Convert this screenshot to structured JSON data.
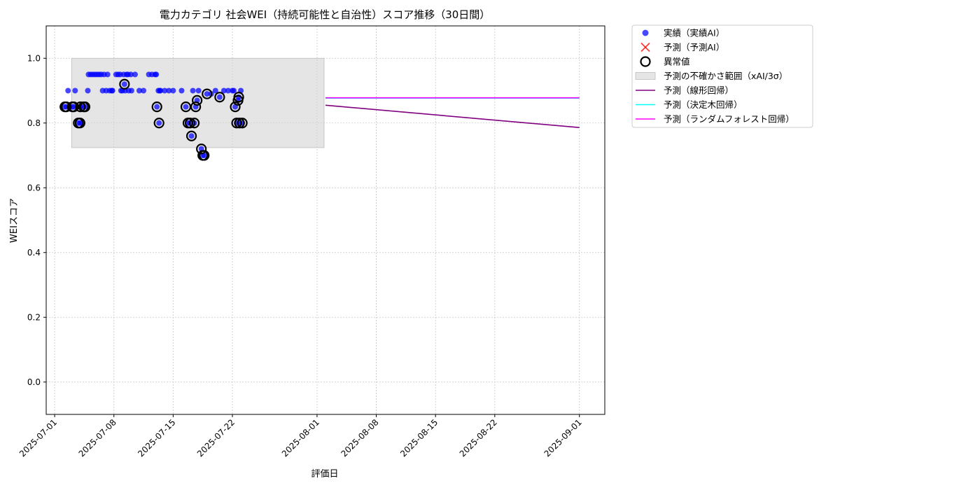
{
  "chart_data": {
    "type": "scatter",
    "title": "電力カテゴリ 社会WEI（持続可能性と自治性）スコア推移（30日間）",
    "xlabel": "評価日",
    "ylabel": "WEIスコア",
    "xlim": [
      "2025-06-30T00:00",
      "2025-09-04T00:00"
    ],
    "ylim": [
      -0.1,
      1.1
    ],
    "x_ticks": [
      "2025-07-01",
      "2025-07-08",
      "2025-07-15",
      "2025-07-22",
      "2025-08-01",
      "2025-08-08",
      "2025-08-15",
      "2025-08-22",
      "2025-09-01"
    ],
    "y_ticks": [
      0.0,
      0.2,
      0.4,
      0.6,
      0.8,
      1.0
    ],
    "grid": true,
    "legend_position": "outside-top-right",
    "colors": {
      "actual": "#0000ff",
      "predicted": "#ff0000",
      "anomaly": "#000000",
      "uncertainty": "#d3d3d3",
      "linear": "#800080",
      "tree": "#00ffff",
      "forest": "#ff00ff"
    },
    "legend": [
      {
        "key": "actual",
        "label": "実績（実績AI）",
        "marker": "dot"
      },
      {
        "key": "predicted",
        "label": "予測（予測AI）",
        "marker": "x"
      },
      {
        "key": "anomaly",
        "label": "異常値",
        "marker": "ring"
      },
      {
        "key": "uncertainty",
        "label": "予測の不確かさ範囲（xAI/3σ）",
        "marker": "box"
      },
      {
        "key": "linear",
        "label": "予測（線形回帰）",
        "marker": "line"
      },
      {
        "key": "tree",
        "label": "予測（決定木回帰）",
        "marker": "line"
      },
      {
        "key": "forest",
        "label": "予測（ランダムフォレスト回帰）",
        "marker": "line"
      }
    ],
    "actual": [
      [
        "2025-07-02T05:00",
        0.85
      ],
      [
        "2025-07-02T09:00",
        0.85
      ],
      [
        "2025-07-02T14:00",
        0.9
      ],
      [
        "2025-07-03T02:00",
        0.85
      ],
      [
        "2025-07-03T06:00",
        0.85
      ],
      [
        "2025-07-03T10:00",
        0.9
      ],
      [
        "2025-07-03T19:00",
        0.8
      ],
      [
        "2025-07-04T00:00",
        0.8
      ],
      [
        "2025-07-04T01:00",
        0.85
      ],
      [
        "2025-07-04T05:00",
        0.8
      ],
      [
        "2025-07-04T10:00",
        0.85
      ],
      [
        "2025-07-04T14:00",
        0.85
      ],
      [
        "2025-07-04T22:00",
        0.9
      ],
      [
        "2025-07-05T00:00",
        0.95
      ],
      [
        "2025-07-05T06:00",
        0.95
      ],
      [
        "2025-07-05T12:00",
        0.95
      ],
      [
        "2025-07-05T18:00",
        0.95
      ],
      [
        "2025-07-06T00:00",
        0.95
      ],
      [
        "2025-07-06T06:00",
        0.95
      ],
      [
        "2025-07-06T12:00",
        0.95
      ],
      [
        "2025-07-06T16:00",
        0.9
      ],
      [
        "2025-07-06T20:00",
        0.95
      ],
      [
        "2025-07-07T02:00",
        0.9
      ],
      [
        "2025-07-07T06:00",
        0.95
      ],
      [
        "2025-07-07T12:00",
        0.9
      ],
      [
        "2025-07-07T18:00",
        0.9
      ],
      [
        "2025-07-07T20:00",
        0.9
      ],
      [
        "2025-07-08T06:00",
        0.95
      ],
      [
        "2025-07-08T12:00",
        0.95
      ],
      [
        "2025-07-08T18:00",
        0.95
      ],
      [
        "2025-07-08T20:00",
        0.9
      ],
      [
        "2025-07-09T00:00",
        0.9
      ],
      [
        "2025-07-09T04:00",
        0.95
      ],
      [
        "2025-07-09T06:00",
        0.92
      ],
      [
        "2025-07-09T08:00",
        0.9
      ],
      [
        "2025-07-09T12:00",
        0.95
      ],
      [
        "2025-07-09T16:00",
        0.95
      ],
      [
        "2025-07-09T18:00",
        0.9
      ],
      [
        "2025-07-10T00:00",
        0.95
      ],
      [
        "2025-07-10T02:00",
        0.9
      ],
      [
        "2025-07-10T12:00",
        0.95
      ],
      [
        "2025-07-11T00:00",
        0.9
      ],
      [
        "2025-07-11T12:00",
        0.9
      ],
      [
        "2025-07-12T03:00",
        0.95
      ],
      [
        "2025-07-12T12:00",
        0.95
      ],
      [
        "2025-07-12T21:00",
        0.95
      ],
      [
        "2025-07-13T00:00",
        0.95
      ],
      [
        "2025-07-13T02:00",
        0.85
      ],
      [
        "2025-07-13T06:00",
        0.9
      ],
      [
        "2025-07-13T08:00",
        0.8
      ],
      [
        "2025-07-13T10:00",
        0.9
      ],
      [
        "2025-07-13T12:00",
        0.9
      ],
      [
        "2025-07-14T00:00",
        0.9
      ],
      [
        "2025-07-14T12:00",
        0.9
      ],
      [
        "2025-07-15T00:00",
        0.9
      ],
      [
        "2025-07-16T00:00",
        0.9
      ],
      [
        "2025-07-16T12:00",
        0.85
      ],
      [
        "2025-07-16T18:00",
        0.8
      ],
      [
        "2025-07-17T00:00",
        0.8
      ],
      [
        "2025-07-17T04:00",
        0.76
      ],
      [
        "2025-07-17T08:00",
        0.9
      ],
      [
        "2025-07-17T12:00",
        0.8
      ],
      [
        "2025-07-17T16:00",
        0.85
      ],
      [
        "2025-07-17T20:00",
        0.87
      ],
      [
        "2025-07-18T00:00",
        0.9
      ],
      [
        "2025-07-18T08:00",
        0.72
      ],
      [
        "2025-07-18T12:00",
        0.7
      ],
      [
        "2025-07-18T16:00",
        0.7
      ],
      [
        "2025-07-19T00:00",
        0.89
      ],
      [
        "2025-07-19T12:00",
        0.89
      ],
      [
        "2025-07-20T00:00",
        0.9
      ],
      [
        "2025-07-20T12:00",
        0.88
      ],
      [
        "2025-07-21T00:00",
        0.9
      ],
      [
        "2025-07-21T12:00",
        0.9
      ],
      [
        "2025-07-22T00:00",
        0.9
      ],
      [
        "2025-07-22T04:00",
        0.9
      ],
      [
        "2025-07-22T08:00",
        0.85
      ],
      [
        "2025-07-22T12:00",
        0.8
      ],
      [
        "2025-07-22T16:00",
        0.87
      ],
      [
        "2025-07-22T18:00",
        0.88
      ],
      [
        "2025-07-22T20:00",
        0.8
      ],
      [
        "2025-07-23T00:00",
        0.9
      ],
      [
        "2025-07-23T04:00",
        0.8
      ]
    ],
    "predicted": [],
    "anomaly": [
      [
        "2025-07-02T05:00",
        0.85
      ],
      [
        "2025-07-02T09:00",
        0.85
      ],
      [
        "2025-07-03T02:00",
        0.85
      ],
      [
        "2025-07-03T06:00",
        0.85
      ],
      [
        "2025-07-03T19:00",
        0.8
      ],
      [
        "2025-07-04T00:00",
        0.8
      ],
      [
        "2025-07-04T01:00",
        0.85
      ],
      [
        "2025-07-04T10:00",
        0.85
      ],
      [
        "2025-07-04T14:00",
        0.85
      ],
      [
        "2025-07-09T06:00",
        0.92
      ],
      [
        "2025-07-13T02:00",
        0.85
      ],
      [
        "2025-07-13T08:00",
        0.8
      ],
      [
        "2025-07-16T12:00",
        0.85
      ],
      [
        "2025-07-16T18:00",
        0.8
      ],
      [
        "2025-07-17T00:00",
        0.8
      ],
      [
        "2025-07-17T04:00",
        0.76
      ],
      [
        "2025-07-17T12:00",
        0.8
      ],
      [
        "2025-07-17T16:00",
        0.85
      ],
      [
        "2025-07-17T20:00",
        0.87
      ],
      [
        "2025-07-18T08:00",
        0.72
      ],
      [
        "2025-07-18T12:00",
        0.7
      ],
      [
        "2025-07-18T16:00",
        0.7
      ],
      [
        "2025-07-19T00:00",
        0.89
      ],
      [
        "2025-07-20T12:00",
        0.88
      ],
      [
        "2025-07-22T08:00",
        0.85
      ],
      [
        "2025-07-22T12:00",
        0.8
      ],
      [
        "2025-07-22T16:00",
        0.87
      ],
      [
        "2025-07-22T18:00",
        0.88
      ],
      [
        "2025-07-22T20:00",
        0.8
      ],
      [
        "2025-07-23T04:00",
        0.8
      ]
    ],
    "uncertainty_band": {
      "x": [
        "2025-07-03T00:00",
        "2025-08-01T20:00"
      ],
      "y": [
        0.724,
        1.0
      ]
    },
    "forecast_lines": [
      {
        "key": "linear",
        "x": [
          "2025-08-02T00:00",
          "2025-09-01T00:00"
        ],
        "y": [
          0.855,
          0.786
        ]
      },
      {
        "key": "tree",
        "x": [
          "2025-08-02T00:00",
          "2025-09-01T00:00"
        ],
        "y": [
          0.877,
          0.877
        ]
      },
      {
        "key": "forest",
        "x": [
          "2025-08-02T00:00",
          "2025-09-01T00:00"
        ],
        "y": [
          0.878,
          0.878
        ]
      }
    ]
  }
}
